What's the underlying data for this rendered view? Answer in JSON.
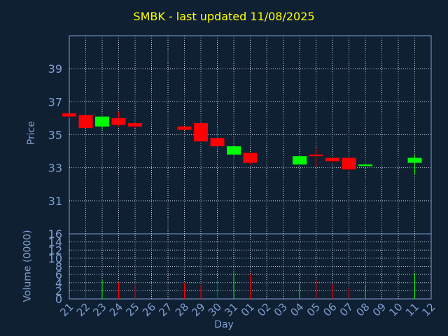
{
  "chart_data": {
    "type": "candlestick",
    "title": "SMBK - last updated 11/08/2025",
    "price_ylabel": "Price",
    "volume_ylabel": "Volume (0000)",
    "xlabel": "Day",
    "price_ylim": [
      29,
      41
    ],
    "price_yticks": [
      31,
      33,
      35,
      37,
      39
    ],
    "volume_ylim": [
      0,
      16
    ],
    "volume_yticks": [
      0,
      2,
      4,
      6,
      8,
      10,
      12,
      14,
      16
    ],
    "x_tick_labels": [
      "21",
      "22",
      "23",
      "24",
      "25",
      "26",
      "27",
      "28",
      "29",
      "30",
      "31",
      "01",
      "02",
      "03",
      "04",
      "05",
      "06",
      "07",
      "08",
      "09",
      "10",
      "11",
      "12"
    ],
    "candles": [
      {
        "day": "21",
        "open": 36.3,
        "high": 36.3,
        "low": 36.0,
        "close": 36.1,
        "volume": 0
      },
      {
        "day": "22",
        "open": 36.2,
        "high": 37.3,
        "low": 35.4,
        "close": 35.4,
        "volume": 14.4
      },
      {
        "day": "23",
        "open": 35.5,
        "high": 36.1,
        "low": 35.3,
        "close": 36.1,
        "volume": 4.8
      },
      {
        "day": "24",
        "open": 36.0,
        "high": 36.4,
        "low": 35.5,
        "close": 35.6,
        "volume": 4.2
      },
      {
        "day": "25",
        "open": 35.7,
        "high": 35.7,
        "low": 35.4,
        "close": 35.5,
        "volume": 3.4
      },
      {
        "day": "28",
        "open": 35.5,
        "high": 35.5,
        "low": 35.3,
        "close": 35.3,
        "volume": 3.9
      },
      {
        "day": "29",
        "open": 35.7,
        "high": 35.7,
        "low": 34.6,
        "close": 34.6,
        "volume": 3.4
      },
      {
        "day": "30",
        "open": 34.8,
        "high": 35.5,
        "low": 34.1,
        "close": 34.3,
        "volume": 4.8
      },
      {
        "day": "31",
        "open": 33.8,
        "high": 34.3,
        "low": 33.8,
        "close": 34.3,
        "volume": 6.5
      },
      {
        "day": "01",
        "open": 33.9,
        "high": 33.9,
        "low": 33.2,
        "close": 33.3,
        "volume": 6.2
      },
      {
        "day": "04",
        "open": 33.2,
        "high": 33.7,
        "low": 33.2,
        "close": 33.7,
        "volume": 3.8
      },
      {
        "day": "05",
        "open": 33.8,
        "high": 34.2,
        "low": 33.1,
        "close": 33.7,
        "volume": 4.7
      },
      {
        "day": "06",
        "open": 33.6,
        "high": 33.6,
        "low": 33.3,
        "close": 33.4,
        "volume": 3.7
      },
      {
        "day": "07",
        "open": 33.6,
        "high": 33.6,
        "low": 32.8,
        "close": 32.9,
        "volume": 2.8
      },
      {
        "day": "08",
        "open": 33.1,
        "high": 33.2,
        "low": 33.1,
        "close": 33.2,
        "volume": 3.5
      },
      {
        "day": "11",
        "open": 33.3,
        "high": 33.8,
        "low": 32.6,
        "close": 33.6,
        "volume": 6.3
      }
    ],
    "up_color": "#00ff00",
    "down_color": "#ff0000",
    "grid": true
  }
}
